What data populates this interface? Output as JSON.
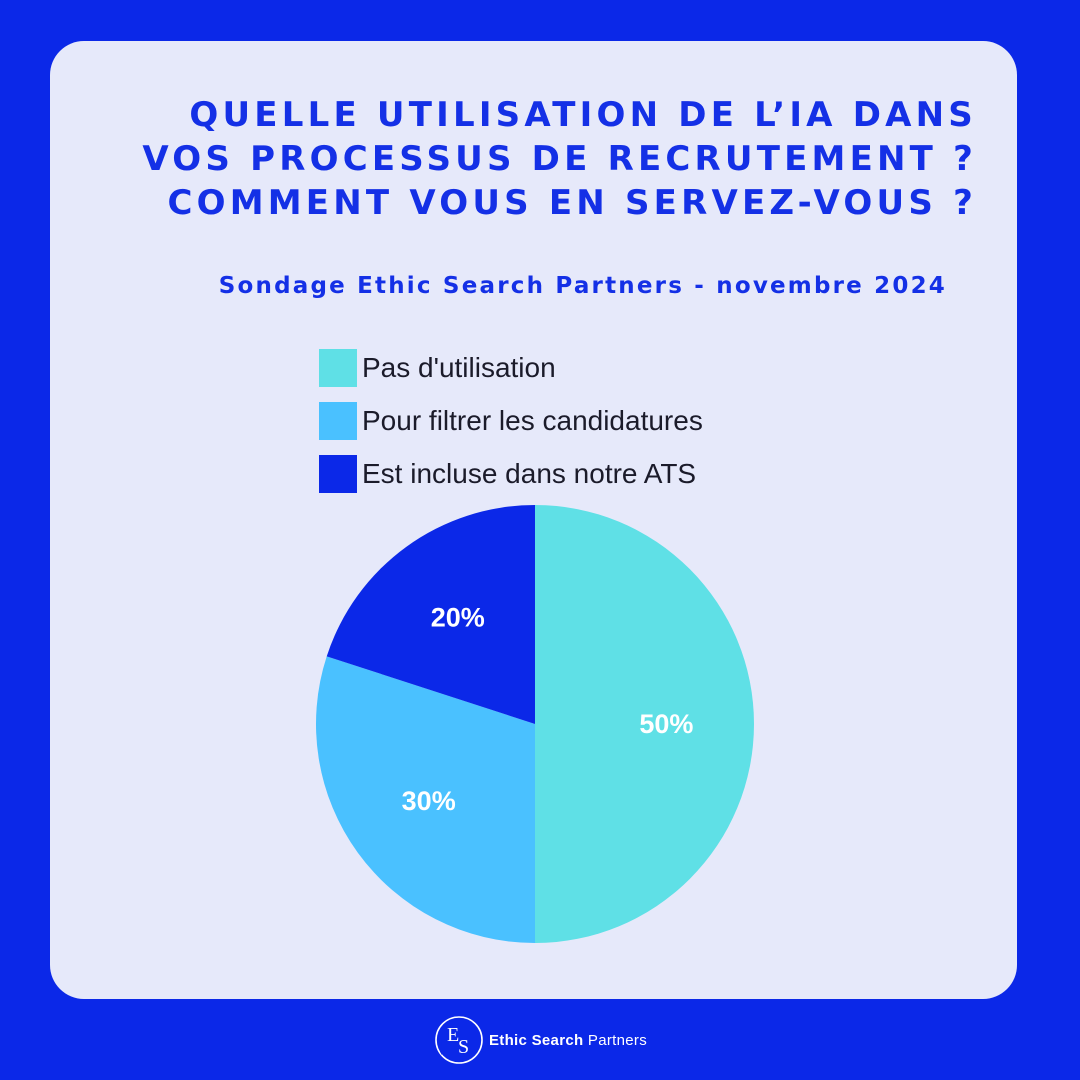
{
  "colors": {
    "background": "#0b28e8",
    "card": "#e6e9fa",
    "accent": "#1430e6"
  },
  "chart_data": {
    "type": "pie",
    "title": [
      "QUELLE UTILISATION DE L’IA DANS",
      "VOS PROCESSUS DE RECRUTEMENT ?",
      "COMMENT VOUS EN SERVEZ-VOUS ?"
    ],
    "subtitle": "Sondage Ethic Search Partners - novembre 2024",
    "legend_position": "top",
    "categories": [
      "Pas d'utilisation",
      "Pour filtrer les candidatures",
      "Est incluse dans notre ATS"
    ],
    "values": [
      50,
      30,
      20
    ],
    "unit": "%",
    "data_labels": [
      "50%",
      "30%",
      "20%"
    ],
    "colors": [
      "#5fe0e6",
      "#4ac1ff",
      "#0b28e8"
    ],
    "start_angle_deg": 0,
    "direction": "clockwise"
  },
  "footer": {
    "logo_letters": "ES",
    "brand_strong": "Ethic Search",
    "brand_rest": " Partners"
  }
}
